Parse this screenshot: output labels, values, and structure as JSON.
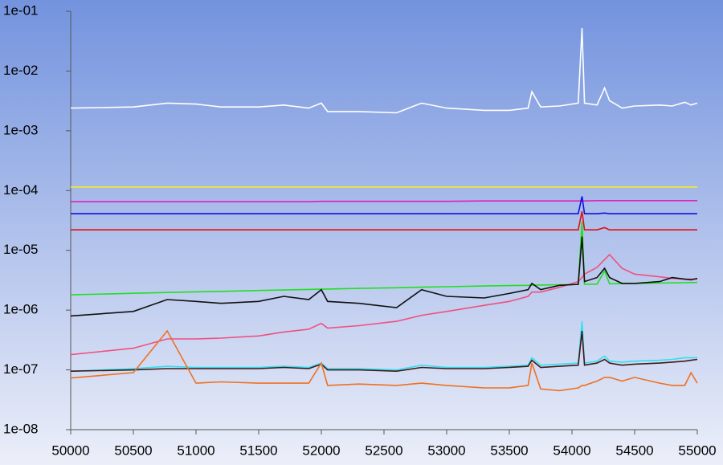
{
  "chart_data": {
    "type": "line",
    "yscale": "log",
    "x": [
      50000,
      50500,
      50770,
      51000,
      51200,
      51500,
      51700,
      51900,
      52000,
      52050,
      52300,
      52600,
      52800,
      53000,
      53300,
      53500,
      53650,
      53680,
      53750,
      53900,
      54050,
      54080,
      54100,
      54200,
      54260,
      54300,
      54400,
      54500,
      54700,
      54800,
      54900,
      54950,
      55000
    ],
    "series": [
      {
        "color": "#ffffff",
        "values": [
          0.0024,
          0.0025,
          0.0029,
          0.0028,
          0.0025,
          0.0025,
          0.0027,
          0.0024,
          0.0029,
          0.0021,
          0.0021,
          0.002,
          0.0029,
          0.0024,
          0.0022,
          0.0022,
          0.0024,
          0.0045,
          0.0025,
          0.0026,
          0.0029,
          0.052,
          0.0029,
          0.0027,
          0.0052,
          0.0032,
          0.0024,
          0.0026,
          0.0027,
          0.0026,
          0.003,
          0.0027,
          0.0029
        ]
      },
      {
        "color": "#f0f020",
        "values": [
          0.000115,
          0.000115,
          0.000115,
          0.000115,
          0.000115,
          0.000115,
          0.000115,
          0.000115,
          0.000115,
          0.000115,
          0.000115,
          0.000115,
          0.000115,
          0.000115,
          0.000115,
          0.000115,
          0.000115,
          0.000115,
          0.000115,
          0.000115,
          0.000115,
          0.000115,
          0.000115,
          0.000115,
          0.000115,
          0.000115,
          0.000115,
          0.000115,
          0.000115,
          0.000115,
          0.000115,
          0.000115,
          0.000115
        ]
      },
      {
        "color": "#e020c0",
        "values": [
          6.5e-05,
          6.5e-05,
          6.5e-05,
          6.5e-05,
          6.5e-05,
          6.5e-05,
          6.5e-05,
          6.5e-05,
          6.6e-05,
          6.6e-05,
          6.6e-05,
          6.6e-05,
          6.6e-05,
          6.6e-05,
          6.7e-05,
          6.7e-05,
          6.7e-05,
          6.7e-05,
          6.7e-05,
          6.7e-05,
          6.7e-05,
          6.7e-05,
          6.7e-05,
          6.8e-05,
          6.8e-05,
          6.8e-05,
          6.8e-05,
          6.8e-05,
          6.8e-05,
          6.8e-05,
          6.8e-05,
          6.8e-05,
          6.8e-05
        ]
      },
      {
        "color": "#1010e0",
        "values": [
          4.1e-05,
          4.1e-05,
          4.1e-05,
          4.1e-05,
          4.1e-05,
          4.1e-05,
          4.1e-05,
          4.1e-05,
          4.1e-05,
          4.1e-05,
          4.1e-05,
          4.1e-05,
          4.1e-05,
          4.1e-05,
          4.1e-05,
          4.1e-05,
          4.1e-05,
          4.1e-05,
          4.1e-05,
          4.1e-05,
          4.1e-05,
          8e-05,
          4.1e-05,
          4.1e-05,
          4.2e-05,
          4.1e-05,
          4.1e-05,
          4.1e-05,
          4.1e-05,
          4.1e-05,
          4.1e-05,
          4.1e-05,
          4.1e-05
        ]
      },
      {
        "color": "#e01010",
        "values": [
          2.2e-05,
          2.2e-05,
          2.2e-05,
          2.2e-05,
          2.2e-05,
          2.2e-05,
          2.2e-05,
          2.2e-05,
          2.2e-05,
          2.2e-05,
          2.2e-05,
          2.2e-05,
          2.2e-05,
          2.2e-05,
          2.2e-05,
          2.2e-05,
          2.2e-05,
          2.2e-05,
          2.2e-05,
          2.2e-05,
          2.2e-05,
          4.5e-05,
          2.2e-05,
          2.2e-05,
          2.4e-05,
          2.2e-05,
          2.2e-05,
          2.2e-05,
          2.2e-05,
          2.2e-05,
          2.2e-05,
          2.2e-05,
          2.2e-05
        ]
      },
      {
        "color": "#20e020",
        "values": [
          1.8e-06,
          1.91e-06,
          1.97e-06,
          2.02e-06,
          2.06e-06,
          2.13e-06,
          2.17e-06,
          2.22e-06,
          2.24e-06,
          2.25e-06,
          2.31e-06,
          2.37e-06,
          2.42e-06,
          2.46e-06,
          2.53e-06,
          2.57e-06,
          2.6e-06,
          2.61e-06,
          2.63e-06,
          2.66e-06,
          2.69e-06,
          3e-05,
          2.7e-06,
          2.72e-06,
          4.5e-06,
          2.75e-06,
          2.77e-06,
          2.79e-06,
          2.83e-06,
          2.86e-06,
          2.88e-06,
          2.89e-06,
          2.9e-06
        ]
      },
      {
        "color": "#f05080",
        "values": [
          1.8e-07,
          2.3e-07,
          3.3e-07,
          3.3e-07,
          3.4e-07,
          3.7e-07,
          4.3e-07,
          4.8e-07,
          6e-07,
          5e-07,
          5.5e-07,
          6.5e-07,
          8.2e-07,
          9.5e-07,
          1.2e-06,
          1.4e-06,
          1.7e-06,
          2e-06,
          2e-06,
          2.4e-06,
          3e-06,
          3.5e-06,
          4e-06,
          5.2e-06,
          7e-06,
          8.5e-06,
          5e-06,
          4e-06,
          3.6e-06,
          3.4e-06,
          3.3e-06,
          3.3e-06,
          3.3e-06
        ]
      },
      {
        "color": "#101010",
        "values": [
          8e-07,
          9.5e-07,
          1.5e-06,
          1.4e-06,
          1.3e-06,
          1.4e-06,
          1.7e-06,
          1.5e-06,
          2.2e-06,
          1.4e-06,
          1.3e-06,
          1.1e-06,
          2.2e-06,
          1.7e-06,
          1.6e-06,
          1.9e-06,
          2.2e-06,
          2.8e-06,
          2.2e-06,
          2.6e-06,
          2.7e-06,
          1.7e-05,
          3e-06,
          3.5e-06,
          5e-06,
          3.5e-06,
          2.8e-06,
          2.8e-06,
          3e-06,
          3.5e-06,
          3.3e-06,
          3.2e-06,
          3.4e-06
        ]
      },
      {
        "color": "#30e0f0",
        "values": [
          9.5e-08,
          1.05e-07,
          1.15e-07,
          1.1e-07,
          1.1e-07,
          1.1e-07,
          1.15e-07,
          1.1e-07,
          1.3e-07,
          1.05e-07,
          1.05e-07,
          1e-07,
          1.2e-07,
          1.1e-07,
          1.1e-07,
          1.15e-07,
          1.2e-07,
          1.6e-07,
          1.2e-07,
          1.25e-07,
          1.3e-07,
          6.5e-07,
          1.3e-07,
          1.4e-07,
          1.7e-07,
          1.4e-07,
          1.35e-07,
          1.4e-07,
          1.45e-07,
          1.5e-07,
          1.6e-07,
          1.6e-07,
          1.6e-07
        ]
      },
      {
        "color": "#401818",
        "values": [
          9.5e-08,
          1e-07,
          1.05e-07,
          1.05e-07,
          1.05e-07,
          1.05e-07,
          1.1e-07,
          1.05e-07,
          1.25e-07,
          1e-07,
          1e-07,
          9.5e-08,
          1.1e-07,
          1.05e-07,
          1.05e-07,
          1.1e-07,
          1.15e-07,
          1.45e-07,
          1.1e-07,
          1.15e-07,
          1.2e-07,
          4.5e-07,
          1.2e-07,
          1.3e-07,
          1.5e-07,
          1.3e-07,
          1.2e-07,
          1.25e-07,
          1.3e-07,
          1.35e-07,
          1.4e-07,
          1.45e-07,
          1.5e-07
        ]
      },
      {
        "color": "#f07020",
        "values": [
          7.3e-08,
          9e-08,
          4.5e-07,
          6e-08,
          6.3e-08,
          6e-08,
          6e-08,
          6e-08,
          1.3e-07,
          5.5e-08,
          5.8e-08,
          5.5e-08,
          6e-08,
          5.5e-08,
          5e-08,
          5e-08,
          5.5e-08,
          1.3e-07,
          4.8e-08,
          4.5e-08,
          5e-08,
          5.5e-08,
          5.5e-08,
          6.5e-08,
          7.5e-08,
          7.5e-08,
          6.5e-08,
          7.5e-08,
          6e-08,
          5.5e-08,
          5.5e-08,
          9e-08,
          6e-08
        ]
      }
    ],
    "xlim": [
      50000,
      55000
    ],
    "xticks": [
      50000,
      50500,
      51000,
      51500,
      52000,
      52500,
      53000,
      53500,
      54000,
      54500,
      55000
    ],
    "ylim": [
      1e-08,
      0.1
    ],
    "yticks": [
      {
        "value": 1e-08,
        "label": "1e-08"
      },
      {
        "value": 1e-07,
        "label": "1e-07"
      },
      {
        "value": 1e-06,
        "label": "1e-06"
      },
      {
        "value": 1e-05,
        "label": "1e-05"
      },
      {
        "value": 0.0001,
        "label": "1e-04"
      },
      {
        "value": 0.001,
        "label": "1e-03"
      },
      {
        "value": 0.01,
        "label": "1e-02"
      },
      {
        "value": 0.1,
        "label": "1e-01"
      }
    ]
  }
}
